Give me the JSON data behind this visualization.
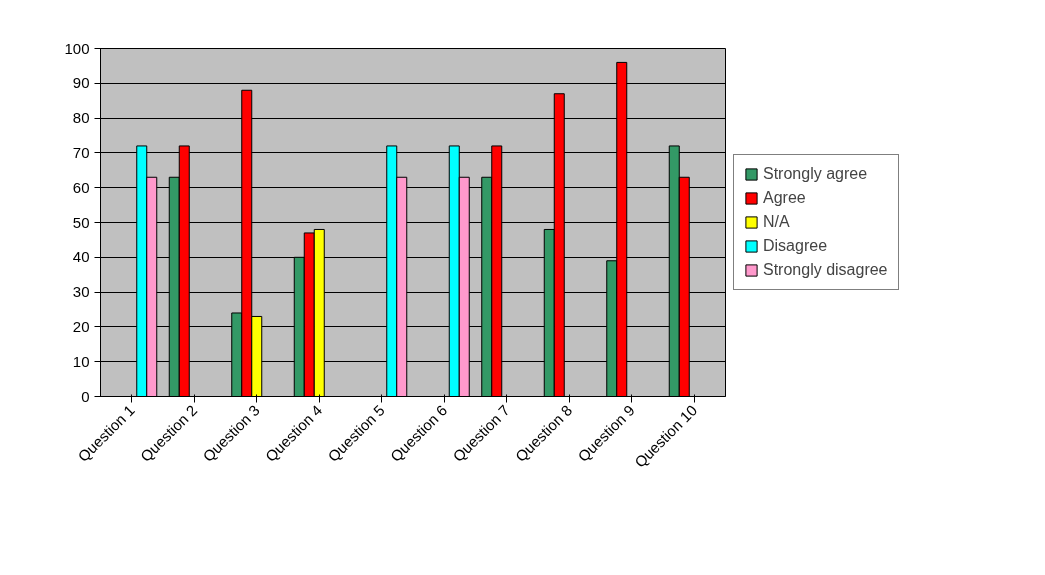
{
  "chart_data": {
    "type": "bar",
    "categories": [
      "Question 1",
      "Question 2",
      "Question 3",
      "Question 4",
      "Question 5",
      "Question 6",
      "Question 7",
      "Question 8",
      "Question 9",
      "Question 10"
    ],
    "series": [
      {
        "name": "Strongly agree",
        "color": "#339966",
        "values": [
          null,
          63,
          24,
          40,
          null,
          null,
          63,
          48,
          39,
          72
        ]
      },
      {
        "name": "Agree",
        "color": "#ff0000",
        "values": [
          null,
          72,
          88,
          47,
          null,
          null,
          72,
          87,
          96,
          63
        ]
      },
      {
        "name": "N/A",
        "color": "#ffff00",
        "values": [
          null,
          null,
          23,
          48,
          null,
          null,
          null,
          null,
          null,
          null
        ]
      },
      {
        "name": "Disagree",
        "color": "#00ffff",
        "values": [
          72,
          null,
          null,
          null,
          72,
          72,
          null,
          null,
          null,
          null
        ]
      },
      {
        "name": "Strongly disagree",
        "color": "#ff99cc",
        "values": [
          63,
          null,
          null,
          null,
          63,
          63,
          null,
          null,
          null,
          null
        ]
      }
    ],
    "ylim": [
      0,
      100
    ],
    "yticks": [
      0,
      10,
      20,
      30,
      40,
      50,
      60,
      70,
      80,
      90,
      100
    ],
    "grid": "y",
    "legend": "right"
  }
}
